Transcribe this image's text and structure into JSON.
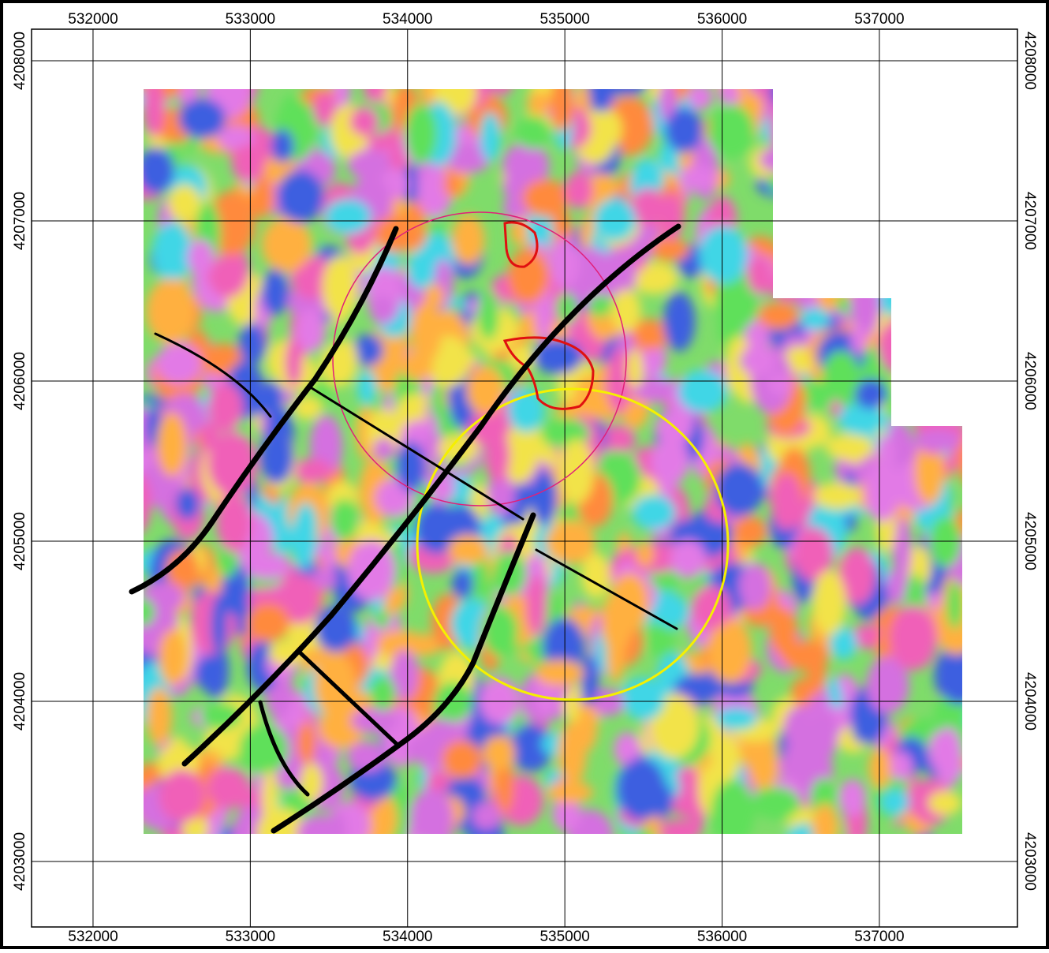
{
  "map": {
    "xlim": [
      531609,
      537878
    ],
    "ylim": [
      4202591,
      4208197
    ],
    "xticks": [
      532000,
      533000,
      534000,
      535000,
      536000,
      537000
    ],
    "yticks": [
      4203000,
      4204000,
      4205000,
      4206000,
      4207000,
      4208000
    ],
    "grid": true
  }
}
